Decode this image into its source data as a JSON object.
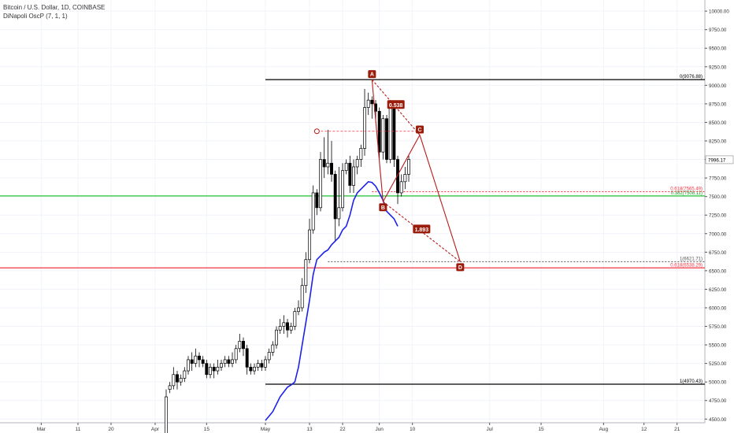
{
  "legend": {
    "symbol_line": "Bitcoin / U.S. Dollar, 1D, COINBASE",
    "indicator_line": "DiNapoli OscP (7, 1, 1)"
  },
  "colors": {
    "up_candle": "#ffffff",
    "down_candle": "#000000",
    "oscillator": "#1d22e8",
    "pattern": "#b71c1c",
    "pattern_label_bg": "#9c1c0c",
    "fib_red": "#f23645",
    "fib_green": "#22c532",
    "level_black": "#000000",
    "grid": "#f0f3fa"
  },
  "chart_data": {
    "type": "candlestick",
    "title": "Bitcoin / U.S. Dollar, 1D, COINBASE",
    "ylim": [
      4450,
      10150
    ],
    "y_ticks": [
      4500,
      4750,
      5000,
      5250,
      5500,
      5750,
      6000,
      6250,
      6500,
      6750,
      7000,
      7250,
      7500,
      7750,
      8000,
      8250,
      8500,
      8750,
      9000,
      9250,
      9500,
      9750,
      10000
    ],
    "y_tick_labels": [
      "4500.00",
      "4750.00",
      "5000.00",
      "5250.00",
      "5500.00",
      "5750.00",
      "6000.00",
      "6250.00",
      "6500.00",
      "6750.00",
      "7000.00",
      "7250.00",
      "7500.00",
      "7750.00",
      "8000.00",
      "8250.00",
      "8500.00",
      "8750.00",
      "9000.00",
      "9250.00",
      "9500.00",
      "9750.00",
      "10000.00"
    ],
    "x_tick_labels": [
      {
        "label": "Mar",
        "day": -34
      },
      {
        "label": "11",
        "day": -24
      },
      {
        "label": "20",
        "day": -15
      },
      {
        "label": "Apr",
        "day": -3
      },
      {
        "label": "15",
        "day": 11
      },
      {
        "label": "May",
        "day": 27
      },
      {
        "label": "13",
        "day": 39
      },
      {
        "label": "22",
        "day": 48
      },
      {
        "label": "Jun",
        "day": 58
      },
      {
        "label": "10",
        "day": 67
      },
      {
        "label": "Jul",
        "day": 88
      },
      {
        "label": "15",
        "day": 102
      },
      {
        "label": "Aug",
        "day": 119
      },
      {
        "label": "12",
        "day": 130
      },
      {
        "label": "21",
        "day": 139
      }
    ],
    "last_price_label": "7996.17",
    "candles": [
      [
        0,
        4100,
        4800,
        4050,
        4900
      ],
      [
        1,
        4900,
        4950,
        4850,
        5000
      ],
      [
        2,
        4950,
        5100,
        4900,
        5200
      ],
      [
        3,
        5100,
        5000,
        4900,
        5150
      ],
      [
        4,
        5000,
        5050,
        4950,
        5100
      ],
      [
        5,
        5050,
        5150,
        5000,
        5200
      ],
      [
        6,
        5150,
        5300,
        5100,
        5350
      ],
      [
        7,
        5300,
        5250,
        5150,
        5400
      ],
      [
        8,
        5250,
        5350,
        5200,
        5450
      ],
      [
        9,
        5350,
        5300,
        5200,
        5400
      ],
      [
        10,
        5300,
        5250,
        5200,
        5350
      ],
      [
        11,
        5250,
        5100,
        5050,
        5300
      ],
      [
        12,
        5100,
        5200,
        5050,
        5250
      ],
      [
        13,
        5200,
        5150,
        5050,
        5250
      ],
      [
        14,
        5150,
        5200,
        5100,
        5300
      ],
      [
        15,
        5200,
        5250,
        5150,
        5300
      ],
      [
        16,
        5250,
        5300,
        5200,
        5350
      ],
      [
        17,
        5300,
        5250,
        5200,
        5350
      ],
      [
        18,
        5250,
        5300,
        5200,
        5400
      ],
      [
        19,
        5300,
        5450,
        5250,
        5500
      ],
      [
        20,
        5450,
        5550,
        5400,
        5650
      ],
      [
        21,
        5550,
        5450,
        5350,
        5600
      ],
      [
        22,
        5450,
        5200,
        5100,
        5500
      ],
      [
        23,
        5200,
        5150,
        5100,
        5250
      ],
      [
        24,
        5150,
        5200,
        5100,
        5250
      ],
      [
        25,
        5200,
        5250,
        5150,
        5300
      ],
      [
        26,
        5250,
        5200,
        5150,
        5300
      ],
      [
        27,
        5200,
        5300,
        5150,
        5350
      ],
      [
        28,
        5300,
        5400,
        5250,
        5450
      ],
      [
        29,
        5400,
        5500,
        5350,
        5550
      ],
      [
        30,
        5500,
        5700,
        5450,
        5750
      ],
      [
        31,
        5700,
        5750,
        5650,
        5850
      ],
      [
        32,
        5750,
        5800,
        5650,
        5900
      ],
      [
        33,
        5800,
        5700,
        5600,
        5850
      ],
      [
        34,
        5700,
        5750,
        5650,
        5800
      ],
      [
        35,
        5750,
        5950,
        5700,
        6000
      ],
      [
        36,
        5950,
        6000,
        5900,
        6100
      ],
      [
        37,
        6000,
        6300,
        5950,
        6400
      ],
      [
        38,
        6300,
        6650,
        6200,
        6750
      ],
      [
        39,
        6650,
        7050,
        6600,
        7200
      ],
      [
        40,
        7050,
        7550,
        7000,
        7650
      ],
      [
        41,
        7550,
        7350,
        7250,
        7600
      ],
      [
        42,
        7350,
        8000,
        7300,
        8100
      ],
      [
        43,
        8000,
        7900,
        7750,
        8300
      ],
      [
        44,
        7900,
        7950,
        7800,
        8400
      ],
      [
        45,
        7950,
        7800,
        7700,
        8250
      ],
      [
        46,
        7800,
        7200,
        6900,
        7850
      ],
      [
        47,
        7200,
        7350,
        7100,
        7900
      ],
      [
        48,
        7350,
        7850,
        7300,
        7950
      ],
      [
        49,
        7850,
        7950,
        7800,
        8000
      ],
      [
        50,
        7950,
        7650,
        7550,
        8050
      ],
      [
        51,
        7650,
        7900,
        7550,
        8000
      ],
      [
        52,
        7900,
        8000,
        7800,
        8050
      ],
      [
        53,
        8000,
        8150,
        7900,
        8200
      ],
      [
        54,
        8150,
        8700,
        8050,
        8950
      ],
      [
        55,
        8700,
        8800,
        8600,
        8900
      ],
      [
        56,
        8800,
        8750,
        8550,
        8850
      ],
      [
        57,
        8750,
        8650,
        8500,
        8800
      ],
      [
        58,
        8650,
        8100,
        8000,
        8700
      ],
      [
        59,
        8100,
        8550,
        8000,
        8600
      ],
      [
        60,
        8550,
        8000,
        7950,
        8600
      ],
      [
        61,
        8000,
        8750,
        7950,
        8800
      ],
      [
        62,
        8700,
        8000,
        7900,
        8750
      ],
      [
        63,
        8000,
        7550,
        7400,
        8050
      ],
      [
        64,
        7550,
        7700,
        7500,
        7800
      ],
      [
        65,
        7700,
        7800,
        7600,
        7900
      ],
      [
        66,
        7800,
        8000,
        7700,
        8050
      ]
    ],
    "series": [
      {
        "name": "DiNapoli OscP (7, 1, 1)",
        "points": [
          [
            27,
            4480
          ],
          [
            29,
            4600
          ],
          [
            31,
            4800
          ],
          [
            33,
            4930
          ],
          [
            34,
            4960
          ],
          [
            35,
            5000
          ],
          [
            36,
            5200
          ],
          [
            37,
            5500
          ],
          [
            38,
            5800
          ],
          [
            39,
            6100
          ],
          [
            40,
            6450
          ],
          [
            41,
            6650
          ],
          [
            42,
            6700
          ],
          [
            43,
            6750
          ],
          [
            44,
            6780
          ],
          [
            45,
            6850
          ],
          [
            46,
            6900
          ],
          [
            47,
            6950
          ],
          [
            48,
            7050
          ],
          [
            49,
            7100
          ],
          [
            50,
            7250
          ],
          [
            51,
            7450
          ],
          [
            52,
            7550
          ],
          [
            53,
            7600
          ],
          [
            54,
            7650
          ],
          [
            55,
            7700
          ],
          [
            56,
            7690
          ],
          [
            57,
            7640
          ],
          [
            58,
            7550
          ],
          [
            59,
            7450
          ],
          [
            60,
            7300
          ],
          [
            61,
            7250
          ],
          [
            62,
            7200
          ],
          [
            63,
            7100
          ]
        ]
      }
    ],
    "horizontal_levels": [
      {
        "name": "level_0",
        "value": 9076.88,
        "label": "0(9076.88)",
        "color": "#000000",
        "x_from_day": 27
      },
      {
        "name": "level_1",
        "value": 4970.43,
        "label": "1(4970.43)",
        "color": "#000000",
        "x_from_day": 27
      },
      {
        "name": "fib_0618_green",
        "value": 7508.11,
        "label": "0.382(7508.11)",
        "color": "#22c532",
        "x_from_day": -100
      },
      {
        "name": "fib_0618_red_upper",
        "value": 7565.49,
        "label": "0.618(7565.49)",
        "color": "#f23645",
        "x_from_day": 56,
        "dashed": true
      },
      {
        "name": "level_1_lower",
        "value": 6621.71,
        "label": "1(6621.71)",
        "color": "#555555",
        "x_from_day": 44,
        "dashed": true
      },
      {
        "name": "fib_0618_red",
        "value": 6538.29,
        "label": "0.618(6538.29)",
        "color": "#f23645",
        "x_from_day": -100
      }
    ],
    "pattern": {
      "points": [
        {
          "name": "A",
          "day": 56,
          "value": 9076.88
        },
        {
          "name": "B",
          "day": 59,
          "value": 7430
        },
        {
          "name": "C",
          "day": 69,
          "value": 8330
        },
        {
          "name": "D",
          "day": 80,
          "value": 6621.71
        }
      ],
      "ratio_labels": [
        "0.538",
        "1.893"
      ],
      "origin_marker": {
        "day": 41,
        "value": 8380
      }
    }
  }
}
